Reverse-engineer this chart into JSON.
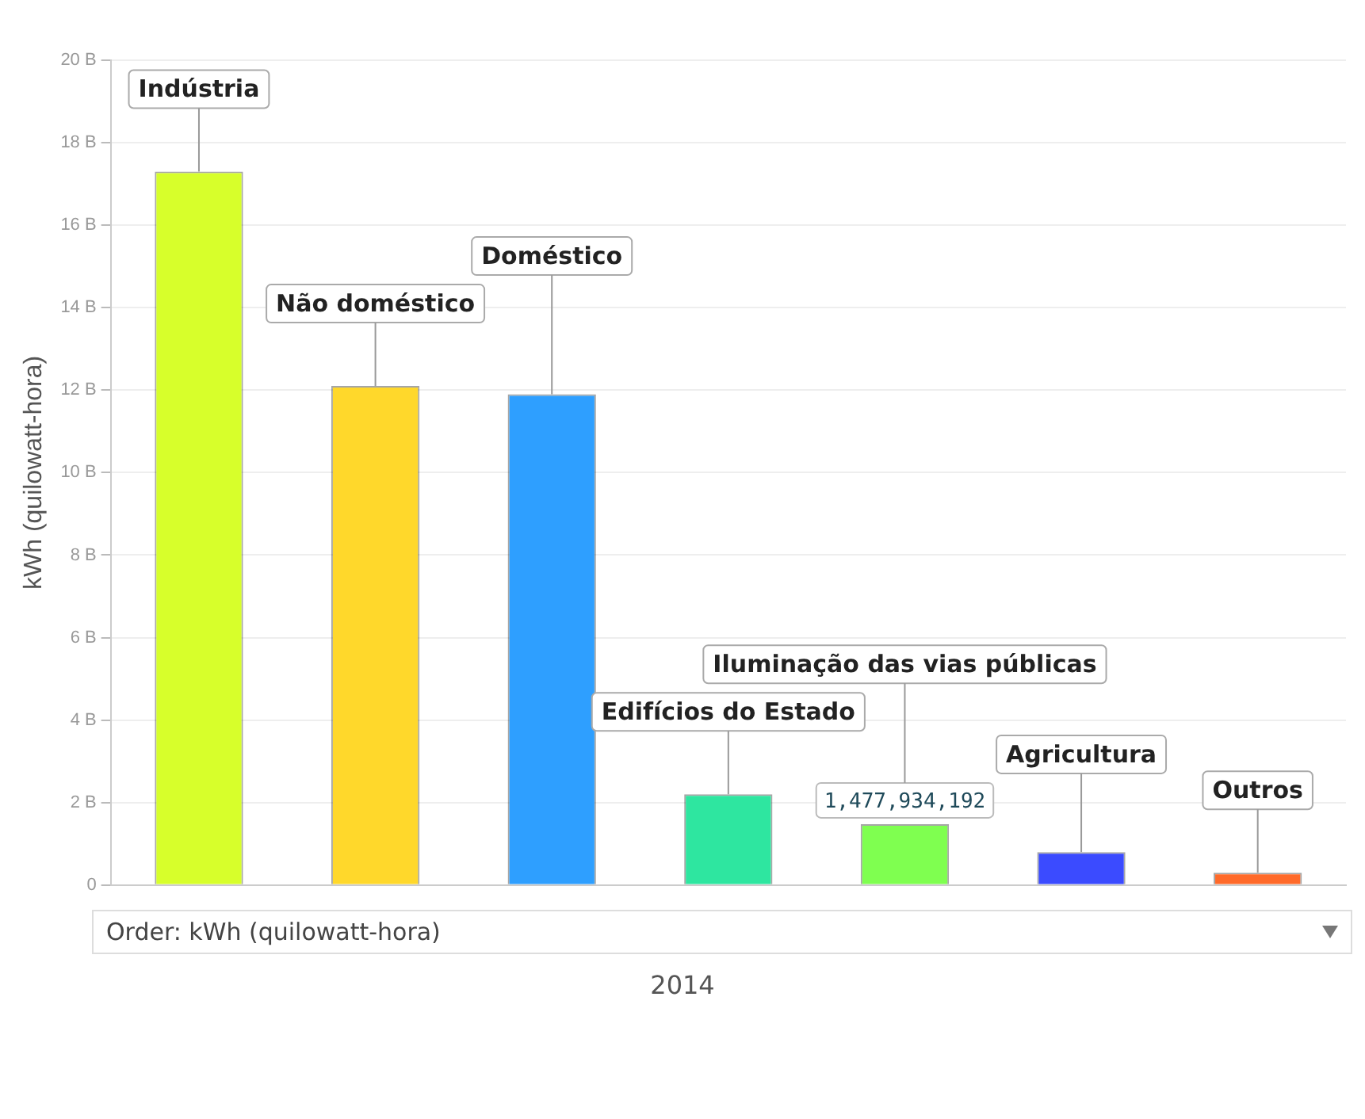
{
  "chart_data": {
    "type": "bar",
    "ylabel": "kWh (quilowatt-hora)",
    "xlabel": "2014",
    "categories": [
      "Indústria",
      "Não doméstico",
      "Doméstico",
      "Edifícios do Estado",
      "Iluminação das vias públicas",
      "Agricultura",
      "Outros"
    ],
    "values": [
      17300000000,
      12100000000,
      11900000000,
      2200000000,
      1477934192,
      800000000,
      300000000
    ],
    "value_labels": [
      null,
      null,
      null,
      null,
      "1,477,934,192",
      null,
      null
    ],
    "colors": [
      "#d7ff2b",
      "#ffd82b",
      "#2e9fff",
      "#2ee6a0",
      "#7fff50",
      "#3b4bff",
      "#ff6a2a"
    ],
    "ylim": [
      0,
      20000000000
    ],
    "yticks": [
      0,
      {
        "value": 2000000000,
        "label": "2 B"
      },
      {
        "value": 4000000000,
        "label": "4 B"
      },
      {
        "value": 6000000000,
        "label": "6 B"
      },
      {
        "value": 8000000000,
        "label": "8 B"
      },
      {
        "value": 10000000000,
        "label": "10 B"
      },
      {
        "value": 12000000000,
        "label": "12 B"
      },
      {
        "value": 14000000000,
        "label": "14 B"
      },
      {
        "value": 16000000000,
        "label": "16 B"
      },
      {
        "value": 18000000000,
        "label": "18 B"
      },
      {
        "value": 20000000000,
        "label": "20 B"
      }
    ],
    "grid": "y",
    "legend": false,
    "annotations": [
      "Order: kWh (quilowatt-hora)"
    ]
  }
}
